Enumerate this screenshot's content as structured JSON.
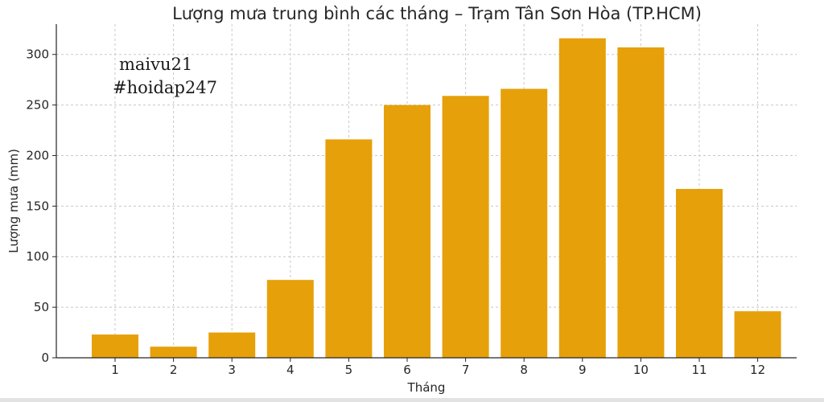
{
  "chart_data": {
    "type": "bar",
    "title": "Lượng mưa trung bình các tháng – Trạm Tân Sơn Hòa (TP.HCM)",
    "xlabel": "Tháng",
    "ylabel": "Lượng mưa (mm)",
    "categories": [
      "1",
      "2",
      "3",
      "4",
      "5",
      "6",
      "7",
      "8",
      "9",
      "10",
      "11",
      "12"
    ],
    "values": [
      23,
      11,
      25,
      77,
      216,
      250,
      259,
      266,
      316,
      307,
      167,
      46
    ],
    "ylim": [
      0,
      330
    ],
    "yticks": [
      0,
      50,
      100,
      150,
      200,
      250,
      300
    ],
    "grid": true,
    "bar_color": "#E6A00A",
    "annotations": [
      "maivu21",
      "#hoidap247"
    ]
  }
}
